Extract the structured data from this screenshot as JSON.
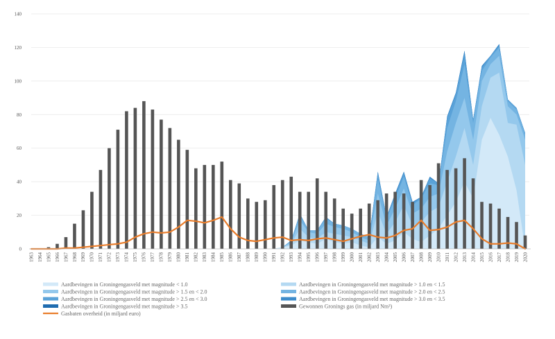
{
  "chart_data": {
    "type": "bar+area+line",
    "x": [
      "1963",
      "1964",
      "1965",
      "1966",
      "1967",
      "1968",
      "1969",
      "1970",
      "1971",
      "1972",
      "1973",
      "1974",
      "1975",
      "1976",
      "1977",
      "1978",
      "1979",
      "1980",
      "1981",
      "1982",
      "1983",
      "1984",
      "1985",
      "1986",
      "1987",
      "1988",
      "1989",
      "1990",
      "1991",
      "1992",
      "1993",
      "1994",
      "1995",
      "1996",
      "1997",
      "1998",
      "1999",
      "2000",
      "2001",
      "2002",
      "2003",
      "2004",
      "2005",
      "2006",
      "2007",
      "2008",
      "2009",
      "2010",
      "2011",
      "2012",
      "2013",
      "2014",
      "2015",
      "2016",
      "2017",
      "2018",
      "2019",
      "2020"
    ],
    "ylim": [
      0,
      140
    ],
    "yticks": [
      0,
      20,
      40,
      60,
      80,
      100,
      120,
      140
    ],
    "grid": true,
    "series": [
      {
        "name": "Aardbevingen in Groningengasveld met magnitude < 1.0",
        "kind": "area",
        "color": "#d3e9f8",
        "values": [
          0,
          0,
          0,
          0,
          0,
          0,
          0,
          0,
          0,
          0,
          0,
          0,
          0,
          0,
          0,
          0,
          0,
          0,
          0,
          0,
          0,
          0,
          0,
          0,
          0,
          0,
          0,
          0,
          0,
          1,
          2,
          5,
          4,
          3,
          6,
          4,
          3,
          4,
          2,
          1,
          7,
          3,
          5,
          10,
          6,
          4,
          8,
          12,
          20,
          28,
          40,
          30,
          65,
          78,
          68,
          55,
          35,
          0
        ]
      },
      {
        "name": "Aardbevingen in Groningengasveld met magnitude > 1.0 en < 1.5",
        "kind": "area",
        "color": "#b4d9f2",
        "values": [
          0,
          0,
          0,
          0,
          0,
          0,
          0,
          0,
          0,
          0,
          0,
          0,
          0,
          0,
          0,
          0,
          0,
          0,
          0,
          0,
          0,
          0,
          0,
          0,
          0,
          0,
          0,
          0,
          0,
          1,
          3,
          12,
          7,
          6,
          10,
          9,
          8,
          7,
          5,
          3,
          22,
          9,
          16,
          26,
          14,
          16,
          22,
          25,
          40,
          55,
          72,
          50,
          85,
          102,
          105,
          75,
          74,
          50
        ]
      },
      {
        "name": "Aardbevingen in Groningengasveld met magnitude > 1.5 en < 2.0",
        "kind": "area",
        "color": "#94c8ec",
        "values": [
          0,
          0,
          0,
          0,
          0,
          0,
          0,
          0,
          0,
          0,
          0,
          0,
          0,
          0,
          0,
          0,
          0,
          0,
          0,
          0,
          0,
          0,
          0,
          0,
          0,
          0,
          0,
          0,
          0,
          1,
          4,
          17,
          10,
          9,
          15,
          13,
          12,
          10,
          7,
          5,
          33,
          14,
          24,
          36,
          21,
          24,
          31,
          33,
          58,
          75,
          90,
          65,
          100,
          110,
          115,
          85,
          80,
          65
        ]
      },
      {
        "name": "Aardbevingen in Groningengasveld met magnitude > 2.0 en < 2.5",
        "kind": "area",
        "color": "#74b4e2",
        "values": [
          0,
          0,
          0,
          0,
          0,
          0,
          0,
          0,
          0,
          0,
          0,
          0,
          0,
          0,
          0,
          0,
          0,
          0,
          0,
          0,
          0,
          0,
          0,
          0,
          0,
          0,
          0,
          0,
          0,
          1,
          5,
          20,
          11,
          11,
          18,
          15,
          14,
          12,
          9,
          7,
          42,
          18,
          30,
          43,
          26,
          30,
          39,
          38,
          72,
          88,
          110,
          75,
          106,
          114,
          120,
          88,
          83,
          68
        ]
      },
      {
        "name": "Aardbevingen in Groningengasveld met magnitude > 2.5 en < 3.0",
        "kind": "area",
        "color": "#5aa2d8",
        "values": [
          0,
          0,
          0,
          0,
          0,
          0,
          0,
          0,
          0,
          0,
          0,
          0,
          0,
          0,
          0,
          0,
          0,
          0,
          0,
          0,
          0,
          0,
          0,
          0,
          0,
          0,
          0,
          0,
          0,
          1,
          5,
          21,
          11,
          11,
          19,
          15,
          14,
          12,
          9,
          7,
          45,
          19,
          32,
          45,
          27,
          31,
          42,
          39,
          78,
          92,
          116,
          77,
          108,
          115,
          121,
          89,
          84,
          69
        ]
      },
      {
        "name": "Aardbevingen in Groningengasveld met magnitude > 3.0 en < 3.5",
        "kind": "area",
        "color": "#3e8ccb",
        "values": [
          0,
          0,
          0,
          0,
          0,
          0,
          0,
          0,
          0,
          0,
          0,
          0,
          0,
          0,
          0,
          0,
          0,
          0,
          0,
          0,
          0,
          0,
          0,
          0,
          0,
          0,
          0,
          0,
          0,
          1,
          5,
          21,
          11,
          11,
          19,
          15,
          14,
          12,
          9,
          7,
          46,
          19,
          33,
          46,
          28,
          31,
          43,
          39,
          79,
          93,
          118,
          77,
          109,
          115,
          122,
          89,
          84,
          69
        ]
      },
      {
        "name": "Aardbevingen in Groningengasveld met magnitude > 3.5",
        "kind": "area",
        "color": "#1f6cb0",
        "values": [
          0,
          0,
          0,
          0,
          0,
          0,
          0,
          0,
          0,
          0,
          0,
          0,
          0,
          0,
          0,
          0,
          0,
          0,
          0,
          0,
          0,
          0,
          0,
          0,
          0,
          0,
          0,
          0,
          0,
          1,
          5,
          21,
          11,
          11,
          19,
          15,
          14,
          12,
          9,
          7,
          46,
          19,
          33,
          46,
          28,
          31,
          43,
          39,
          79,
          93,
          118,
          77,
          109,
          115,
          122,
          89,
          84,
          69
        ]
      },
      {
        "name": "Gewonnen Gronings gas (in miljard Nm³)",
        "kind": "bar",
        "color": "#555555",
        "values": [
          0,
          0,
          1,
          3,
          7,
          15,
          23,
          34,
          47,
          60,
          71,
          82,
          84,
          88,
          83,
          77,
          72,
          65,
          59,
          48,
          50,
          50,
          52,
          41,
          39,
          30,
          28,
          29,
          38,
          41,
          43,
          34,
          34,
          42,
          34,
          30,
          24,
          21,
          24,
          27,
          29,
          33,
          34,
          33,
          28,
          41,
          38,
          51,
          47,
          48,
          54,
          42,
          28,
          27,
          24,
          19,
          16,
          8
        ]
      },
      {
        "name": "Gasbaten overheid (in miljard euro)",
        "kind": "line",
        "color": "#e97d2b",
        "values": [
          0,
          0,
          0,
          0,
          0.5,
          0.5,
          1,
          1.5,
          2,
          2.5,
          3,
          4,
          7,
          9,
          10,
          9.5,
          10,
          13,
          17,
          16.5,
          15.5,
          17,
          19,
          12,
          7,
          5,
          4.5,
          5.5,
          6.5,
          7,
          5,
          5.5,
          5,
          6,
          6.5,
          5.5,
          4.5,
          6,
          7.5,
          8.5,
          7,
          6.5,
          8,
          11,
          12,
          17,
          11,
          11.5,
          13,
          16,
          17,
          12,
          6,
          3,
          3,
          3.5,
          3,
          0
        ]
      }
    ]
  },
  "legend": [
    {
      "label": "Aardbevingen in Groningengasveld met magnitude < 1.0",
      "color": "#d3e9f8",
      "shape": "band"
    },
    {
      "label": "Aardbevingen in Groningengasveld met magnitude > 1.0 en < 1.5",
      "color": "#b4d9f2",
      "shape": "band"
    },
    {
      "label": "Aardbevingen in Groningengasveld met magnitude > 1.5 en < 2.0",
      "color": "#94c8ec",
      "shape": "band"
    },
    {
      "label": "Aardbevingen in Groningengasveld met magnitude > 2.0 en < 2.5",
      "color": "#74b4e2",
      "shape": "band"
    },
    {
      "label": "Aardbevingen in Groningengasveld met magnitude > 2.5 en < 3.0",
      "color": "#5aa2d8",
      "shape": "band"
    },
    {
      "label": "Aardbevingen in Groningengasveld met magnitude > 3.0 en < 3.5",
      "color": "#3e8ccb",
      "shape": "band"
    },
    {
      "label": "Aardbevingen in Groningengasveld met magnitude > 3.5",
      "color": "#1f6cb0",
      "shape": "band"
    },
    {
      "label": "Gewonnen Gronings gas (in miljard Nm³)",
      "color": "#555555",
      "shape": "band"
    },
    {
      "label": "Gasbaten overheid (in miljard euro)",
      "color": "#e97d2b",
      "shape": "line"
    }
  ]
}
